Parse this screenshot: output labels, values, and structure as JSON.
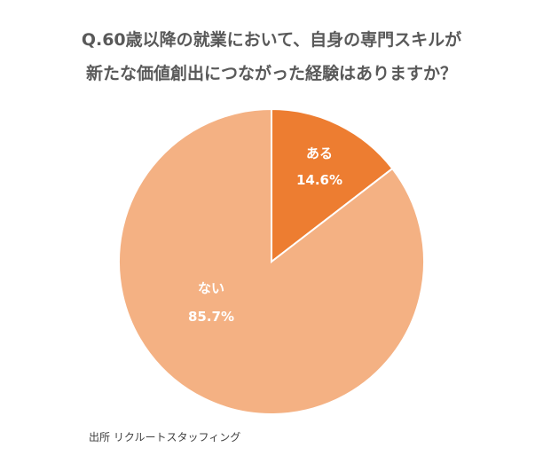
{
  "chart_data": {
    "type": "pie",
    "title_lines": [
      "Q.60歳以降の就業において、自身の専門スキルが",
      "新たな価値創出につながった経験はありますか？"
    ],
    "slices": [
      {
        "label": "ある",
        "value": 14.6,
        "value_label": "14.6%",
        "color": "#ED7D31"
      },
      {
        "label": "ない",
        "value": 85.7,
        "value_label": "85.7%",
        "color": "#F4B183"
      }
    ]
  },
  "source": "出所 リクルートスタッフィング"
}
